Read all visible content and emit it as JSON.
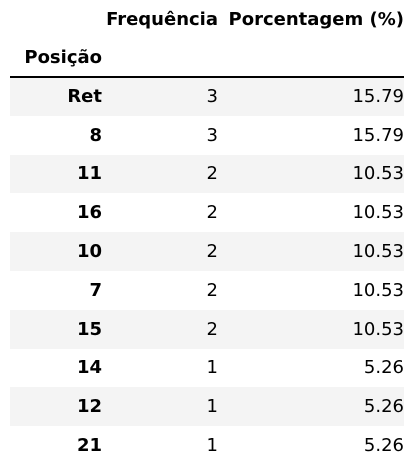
{
  "table": {
    "columns": [
      "Frequência",
      "Porcentagem (%)"
    ],
    "index_name": "Posição",
    "rows": [
      {
        "label": "Ret",
        "freq": "3",
        "pct": "15.79"
      },
      {
        "label": "8",
        "freq": "3",
        "pct": "15.79"
      },
      {
        "label": "11",
        "freq": "2",
        "pct": "10.53"
      },
      {
        "label": "16",
        "freq": "2",
        "pct": "10.53"
      },
      {
        "label": "10",
        "freq": "2",
        "pct": "10.53"
      },
      {
        "label": "7",
        "freq": "2",
        "pct": "10.53"
      },
      {
        "label": "15",
        "freq": "2",
        "pct": "10.53"
      },
      {
        "label": "14",
        "freq": "1",
        "pct": "5.26"
      },
      {
        "label": "12",
        "freq": "1",
        "pct": "5.26"
      },
      {
        "label": "21",
        "freq": "1",
        "pct": "5.26"
      }
    ]
  },
  "colors": {
    "stripe": "#f4f4f4",
    "rule": "#000000"
  }
}
